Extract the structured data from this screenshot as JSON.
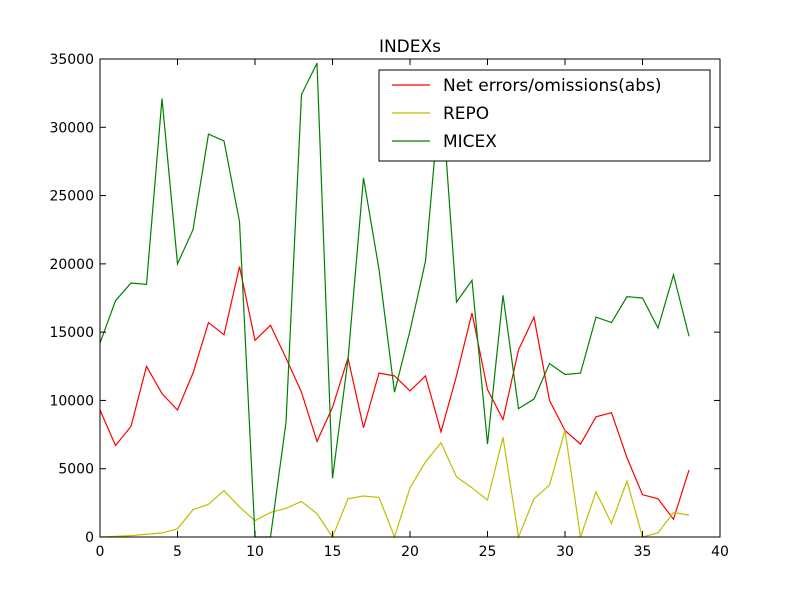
{
  "chart_data": {
    "type": "line",
    "title": "INDEXs",
    "xlabel": "",
    "ylabel": "",
    "xlim": [
      0,
      40
    ],
    "ylim": [
      0,
      35000
    ],
    "x_ticks": [
      0,
      5,
      10,
      15,
      20,
      25,
      30,
      35,
      40
    ],
    "y_ticks": [
      0,
      5000,
      10000,
      15000,
      20000,
      25000,
      30000,
      35000
    ],
    "x_tick_labels": [
      "0",
      "5",
      "10",
      "15",
      "20",
      "25",
      "30",
      "35",
      "40"
    ],
    "y_tick_labels": [
      "0",
      "5000",
      "10000",
      "15000",
      "20000",
      "25000",
      "30000",
      "35000"
    ],
    "grid": false,
    "legend_position": "top-right",
    "x": [
      0,
      1,
      2,
      3,
      4,
      5,
      6,
      7,
      8,
      9,
      10,
      11,
      12,
      13,
      14,
      15,
      16,
      17,
      18,
      19,
      20,
      21,
      22,
      23,
      24,
      25,
      26,
      27,
      28,
      29,
      30,
      31,
      32,
      33,
      34,
      35,
      36,
      37,
      38
    ],
    "series": [
      {
        "name": "Net errors/omissions(abs)",
        "color": "#ff0000",
        "values": [
          9300,
          6700,
          8100,
          12500,
          10500,
          9300,
          12000,
          15700,
          14800,
          19800,
          14400,
          15500,
          13100,
          10600,
          7000,
          9500,
          13100,
          8000,
          12000,
          11800,
          10700,
          11800,
          7700,
          11800,
          16400,
          10800,
          8600,
          13700,
          16100,
          10000,
          7800,
          6800,
          8800,
          9100,
          5800,
          3100,
          2800,
          1300,
          4900
        ]
      },
      {
        "name": "REPO",
        "color": "#bfbf00",
        "values": [
          0,
          50,
          100,
          200,
          300,
          600,
          2000,
          2400,
          3400,
          2200,
          1200,
          1800,
          2100,
          2600,
          1700,
          0,
          2800,
          3000,
          2900,
          0,
          3600,
          5500,
          6900,
          4400,
          3600,
          2700,
          7300,
          0,
          2800,
          3800,
          7800,
          0,
          3300,
          1000,
          4100,
          0,
          300,
          1800,
          1600
        ]
      },
      {
        "name": "MICEX",
        "color": "#008000",
        "values": [
          14200,
          17300,
          18600,
          18500,
          32100,
          20000,
          22500,
          29500,
          29000,
          23100,
          0,
          0,
          8400,
          32400,
          34700,
          4300,
          13000,
          26300,
          19600,
          10600,
          15100,
          20200,
          33100,
          17200,
          18800,
          6800,
          17700,
          9400,
          10100,
          12700,
          11900,
          12000,
          16100,
          15700,
          17600,
          17500,
          15300,
          19200,
          14700
        ]
      }
    ]
  }
}
